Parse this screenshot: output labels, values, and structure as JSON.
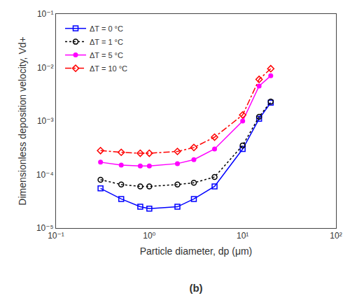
{
  "chart_data": {
    "type": "line",
    "title": "(b)",
    "xlabel": "Particle diameter, dp (μm)",
    "ylabel": "Dimensionless deposition velocity, Vd+",
    "log": true,
    "grid": false,
    "legend": "upper left",
    "xlim": [
      0.1,
      100
    ],
    "ylim": [
      1e-05,
      0.1
    ],
    "xticks": [
      {
        "value": 0.1,
        "label": "10⁻¹"
      },
      {
        "value": 1,
        "label": "10⁰"
      },
      {
        "value": 10,
        "label": "10¹"
      },
      {
        "value": 100,
        "label": "10²"
      }
    ],
    "yticks": [
      {
        "value": 1e-05,
        "label": "10⁻⁵"
      },
      {
        "value": 0.0001,
        "label": "10⁻⁴"
      },
      {
        "value": 0.001,
        "label": "10⁻³"
      },
      {
        "value": 0.01,
        "label": "10⁻²"
      },
      {
        "value": 0.1,
        "label": "10⁻¹"
      }
    ],
    "x": [
      0.3,
      0.5,
      0.8,
      1.0,
      2.0,
      3.0,
      5.0,
      10.0,
      15.0,
      20.0
    ],
    "series": [
      {
        "name": "ΔT = 0 °C",
        "color": "blue",
        "marker": "square-open",
        "line_style": "solid",
        "values": [
          5.5e-05,
          3.5e-05,
          2.5e-05,
          2.3e-05,
          2.5e-05,
          3.5e-05,
          6e-05,
          0.0003,
          0.0011,
          0.0022
        ]
      },
      {
        "name": "ΔT = 1 °C",
        "color": "black",
        "marker": "circle-open",
        "line_style": "dot",
        "values": [
          8e-05,
          6.5e-05,
          6e-05,
          6e-05,
          6.5e-05,
          7e-05,
          9e-05,
          0.00035,
          0.0012,
          0.0023
        ]
      },
      {
        "name": "ΔT = 5 °C",
        "color": "magenta",
        "marker": "circle",
        "line_style": "solid",
        "values": [
          0.00017,
          0.00015,
          0.000145,
          0.000145,
          0.00016,
          0.00019,
          0.0003,
          0.001,
          0.0045,
          0.007
        ]
      },
      {
        "name": "ΔT = 10 °C",
        "color": "red",
        "marker": "diamond-open",
        "line_style": "dashdot",
        "values": [
          0.00028,
          0.00026,
          0.00025,
          0.00025,
          0.00027,
          0.00032,
          0.0005,
          0.0013,
          0.006,
          0.0095
        ]
      }
    ]
  }
}
